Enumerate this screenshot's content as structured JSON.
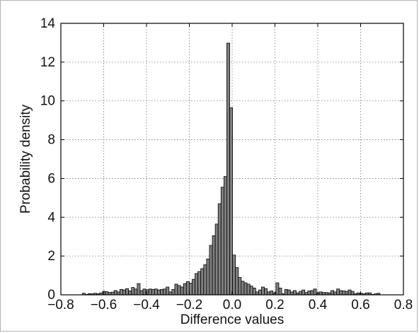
{
  "chart_data": {
    "type": "bar",
    "title": "",
    "xlabel": "Difference values",
    "ylabel": "Probability density",
    "xlim": [
      -0.8,
      0.8
    ],
    "ylim": [
      0,
      14
    ],
    "grid": true,
    "grid_style": "dotted",
    "bar_color": "#808080",
    "bar_edge_color": "#000000",
    "xticks": [
      -0.8,
      -0.6,
      -0.4,
      -0.2,
      0.0,
      0.2,
      0.4,
      0.6,
      0.8
    ],
    "xtick_labels": [
      "−0.8",
      "−0.6",
      "−0.4",
      "−0.2",
      "0.0",
      "0.2",
      "0.4",
      "0.6",
      "0.8"
    ],
    "yticks": [
      0,
      2,
      4,
      6,
      8,
      10,
      12,
      14
    ],
    "ytick_labels": [
      "0",
      "2",
      "4",
      "6",
      "8",
      "10",
      "12",
      "14"
    ],
    "bin_width": 0.0135,
    "bin_centers": [
      -0.6932,
      -0.6797,
      -0.6662,
      -0.6527,
      -0.6392,
      -0.6257,
      -0.6122,
      -0.5987,
      -0.5852,
      -0.5717,
      -0.5582,
      -0.5447,
      -0.5312,
      -0.5177,
      -0.5042,
      -0.4907,
      -0.4772,
      -0.4637,
      -0.4502,
      -0.4367,
      -0.4232,
      -0.4097,
      -0.3962,
      -0.3827,
      -0.3692,
      -0.3557,
      -0.3422,
      -0.3287,
      -0.3152,
      -0.3017,
      -0.2882,
      -0.2747,
      -0.2612,
      -0.2477,
      -0.2342,
      -0.2207,
      -0.2072,
      -0.1937,
      -0.1802,
      -0.1667,
      -0.1532,
      -0.1397,
      -0.1262,
      -0.1127,
      -0.0992,
      -0.0857,
      -0.0722,
      -0.0587,
      -0.0452,
      -0.0317,
      -0.0182,
      -0.0047,
      0.0088,
      0.0223,
      0.0358,
      0.0493,
      0.0628,
      0.0763,
      0.0898,
      0.1033,
      0.1168,
      0.1303,
      0.1438,
      0.1573,
      0.1708,
      0.1843,
      0.1978,
      0.2113,
      0.2248,
      0.2383,
      0.2518,
      0.2653,
      0.2788,
      0.2923,
      0.3058,
      0.3193,
      0.3328,
      0.3463,
      0.3598,
      0.3733,
      0.3868,
      0.4003,
      0.4138,
      0.4273,
      0.4408,
      0.4543,
      0.4678,
      0.4813,
      0.4948,
      0.5083,
      0.5218,
      0.5353,
      0.5488,
      0.5623,
      0.5758,
      0.5893,
      0.6028,
      0.6163,
      0.6298,
      0.6433,
      0.6568,
      0.6703,
      0.6838
    ],
    "values": [
      0.08,
      0.02,
      0.06,
      0.05,
      0.08,
      0.05,
      0.1,
      0.18,
      0.16,
      0.12,
      0.14,
      0.22,
      0.15,
      0.28,
      0.25,
      0.32,
      0.2,
      0.38,
      0.3,
      0.58,
      0.22,
      0.3,
      0.26,
      0.3,
      0.28,
      0.3,
      0.25,
      0.28,
      0.3,
      0.4,
      0.15,
      0.28,
      0.55,
      0.48,
      0.4,
      0.58,
      0.68,
      0.6,
      0.8,
      1.1,
      1.2,
      1.35,
      1.55,
      1.85,
      2.55,
      3.05,
      3.65,
      4.7,
      5.55,
      6.1,
      12.98,
      9.65,
      2.05,
      1.4,
      0.9,
      0.7,
      0.62,
      0.55,
      0.45,
      0.35,
      0.15,
      0.25,
      0.4,
      0.32,
      0.15,
      0.2,
      0.1,
      0.62,
      0.35,
      0.05,
      0.28,
      0.25,
      0.15,
      0.22,
      0.1,
      0.18,
      0.25,
      0.12,
      0.2,
      0.22,
      0.3,
      0.1,
      0.15,
      0.12,
      0.12,
      0.1,
      0.22,
      0.15,
      0.3,
      0.22,
      0.2,
      0.18,
      0.25,
      0.18,
      0.05,
      0.1,
      0.08,
      0.05,
      0.1,
      0.1,
      0.02,
      0.05,
      0.08
    ]
  }
}
